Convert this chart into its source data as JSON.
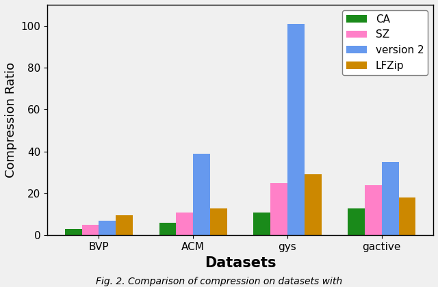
{
  "categories": [
    "BVP",
    "ACM",
    "gys",
    "gactive"
  ],
  "series": {
    "CA": [
      3,
      6,
      11,
      13
    ],
    "SZ": [
      5,
      11,
      25,
      24
    ],
    "version 2": [
      7,
      39,
      101,
      35
    ],
    "LFZip": [
      9.5,
      13,
      29,
      18
    ]
  },
  "colors": {
    "CA": "#1a8a1a",
    "SZ": "#ff80c8",
    "version 2": "#6699ee",
    "LFZip": "#cc8800"
  },
  "ylabel": "Compression Ratio",
  "xlabel": "Datasets",
  "ylim": [
    0,
    110
  ],
  "yticks": [
    0,
    20,
    40,
    60,
    80,
    100
  ],
  "legend_loc": "upper right",
  "bar_width": 0.18,
  "caption": "Fig. 2. Comparison of compression on datasets with",
  "bg_color": "#f0f0f0",
  "ylabel_fontsize": 13,
  "xlabel_fontsize": 15,
  "tick_fontsize": 11,
  "legend_fontsize": 11
}
